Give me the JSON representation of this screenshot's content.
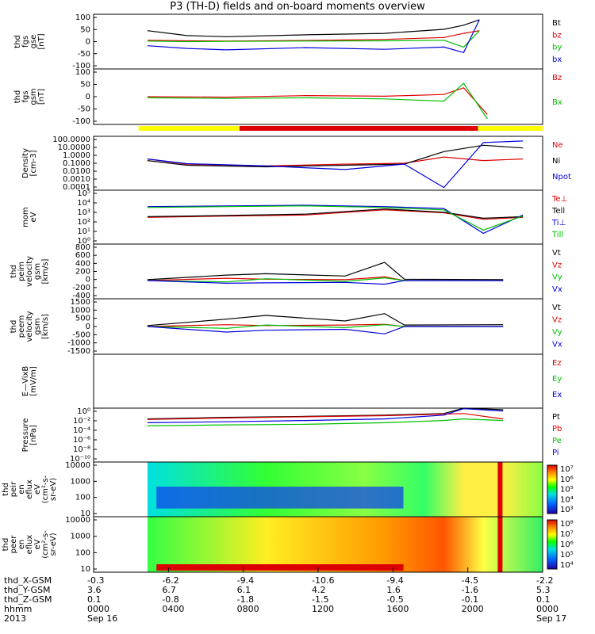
{
  "title": "P3 (TH-D) fields and on-board moments overview",
  "chart_data": [
    {
      "type": "line",
      "id": "fgs",
      "ylabel": [
        "thd",
        "fgs",
        "gse",
        "[nT]"
      ],
      "ylim": [
        -100,
        100
      ],
      "yticks": [
        100,
        50,
        0,
        -50,
        -100
      ],
      "series": [
        {
          "name": "Bt",
          "color": "#000000",
          "x": [
            0.0,
            0.1,
            0.2,
            0.4,
            0.6,
            0.75,
            0.8,
            0.84
          ],
          "y": [
            40,
            22,
            18,
            25,
            30,
            45,
            60,
            80
          ]
        },
        {
          "name": "bz",
          "color": "#e00000",
          "x": [
            0.0,
            0.1,
            0.2,
            0.4,
            0.6,
            0.75,
            0.8,
            0.84
          ],
          "y": [
            5,
            3,
            2,
            4,
            8,
            15,
            30,
            40
          ]
        },
        {
          "name": "by",
          "color": "#00c000",
          "x": [
            0.0,
            0.1,
            0.2,
            0.4,
            0.6,
            0.75,
            0.8,
            0.84
          ],
          "y": [
            2,
            0,
            1,
            2,
            3,
            5,
            -20,
            40
          ]
        },
        {
          "name": "bx",
          "color": "#0000e0",
          "x": [
            0.0,
            0.1,
            0.2,
            0.4,
            0.6,
            0.75,
            0.8,
            0.84
          ],
          "y": [
            -15,
            -25,
            -30,
            -22,
            -28,
            -20,
            -40,
            80
          ]
        }
      ]
    },
    {
      "type": "line",
      "id": "fgs-gsm",
      "ylabel": [
        "thd",
        "fgs",
        "gsm",
        "[nT]"
      ],
      "ylim": [
        -125,
        125
      ],
      "yticks": [
        100,
        50,
        0,
        -50,
        -100
      ],
      "series": [
        {
          "name": "Bz",
          "color": "#e00000",
          "x": [
            0.0,
            0.2,
            0.4,
            0.6,
            0.75,
            0.8,
            0.86
          ],
          "y": [
            0,
            -2,
            5,
            2,
            10,
            40,
            -80
          ]
        },
        {
          "name": "Bx",
          "color": "#00c000",
          "x": [
            0.0,
            0.2,
            0.4,
            0.6,
            0.75,
            0.8,
            0.86
          ],
          "y": [
            -5,
            -8,
            -5,
            -10,
            -20,
            60,
            -100
          ]
        }
      ]
    },
    {
      "type": "line",
      "id": "density",
      "ylabel": [
        "Density",
        "[cm-3]"
      ],
      "yscale": "log",
      "ylim": [
        0.0001,
        100
      ],
      "yticks": [
        "100.0000",
        "10.0000",
        "1.0000",
        "0.1000",
        "0.0100",
        "0.0010",
        "0.0001"
      ],
      "series": [
        {
          "name": "Ne",
          "color": "#e00000",
          "x": [
            0.0,
            0.1,
            0.3,
            0.5,
            0.65,
            0.75,
            0.85,
            0.95
          ],
          "y": [
            0.3,
            0.08,
            0.05,
            0.08,
            0.1,
            0.5,
            0.2,
            0.3
          ]
        },
        {
          "name": "Ni",
          "color": "#000000",
          "x": [
            0.0,
            0.1,
            0.3,
            0.5,
            0.65,
            0.75,
            0.85,
            0.95
          ],
          "y": [
            0.2,
            0.06,
            0.04,
            0.06,
            0.08,
            2,
            10,
            5
          ]
        },
        {
          "name": "Npot",
          "color": "#0000e0",
          "x": [
            0.0,
            0.1,
            0.3,
            0.5,
            0.65,
            0.75,
            0.85,
            0.95
          ],
          "y": [
            0.3,
            0.09,
            0.05,
            0.02,
            0.08,
            0.0002,
            20,
            30
          ]
        }
      ]
    },
    {
      "type": "line",
      "id": "temperature",
      "ylabel": [
        "mom",
        "eV"
      ],
      "yscale": "log",
      "ylim": [
        1,
        100000
      ],
      "yticks": [
        "10⁵",
        "10⁴",
        "10³",
        "10²",
        "10¹",
        "10⁰"
      ],
      "series": [
        {
          "name": "Te⊥",
          "color": "#e00000",
          "x": [
            0.0,
            0.2,
            0.4,
            0.6,
            0.75,
            0.85,
            0.95
          ],
          "y": [
            300,
            400,
            500,
            1500,
            800,
            200,
            300
          ]
        },
        {
          "name": "Tell",
          "color": "#000000",
          "x": [
            0.0,
            0.2,
            0.4,
            0.6,
            0.75,
            0.85,
            0.95
          ],
          "y": [
            350,
            450,
            600,
            1800,
            900,
            250,
            350
          ]
        },
        {
          "name": "Ti⊥",
          "color": "#0000e0",
          "x": [
            0.0,
            0.2,
            0.4,
            0.6,
            0.75,
            0.85,
            0.95
          ],
          "y": [
            3000,
            3500,
            4000,
            3000,
            2000,
            10,
            500
          ]
        },
        {
          "name": "Till",
          "color": "#00c000",
          "x": [
            0.0,
            0.2,
            0.4,
            0.6,
            0.75,
            0.85,
            0.95
          ],
          "y": [
            2500,
            3000,
            3500,
            2500,
            1500,
            20,
            400
          ]
        }
      ]
    },
    {
      "type": "line",
      "id": "peim-velocity",
      "ylabel": [
        "thd",
        "peim",
        "velocity",
        "gsm",
        "[km/s]"
      ],
      "ylim": [
        -400,
        800
      ],
      "yticks": [
        800,
        600,
        400,
        200,
        0,
        -200,
        -400
      ],
      "series": [
        {
          "name": "Vt",
          "color": "#000000",
          "x": [
            0.0,
            0.2,
            0.3,
            0.5,
            0.6,
            0.65,
            0.9
          ],
          "y": [
            20,
            120,
            150,
            100,
            400,
            30,
            20
          ]
        },
        {
          "name": "Vz",
          "color": "#e00000",
          "x": [
            0.0,
            0.2,
            0.3,
            0.5,
            0.6,
            0.65,
            0.9
          ],
          "y": [
            0,
            50,
            30,
            20,
            80,
            0,
            0
          ]
        },
        {
          "name": "Vy",
          "color": "#00c000",
          "x": [
            0.0,
            0.2,
            0.3,
            0.5,
            0.6,
            0.65,
            0.9
          ],
          "y": [
            0,
            -30,
            40,
            -20,
            60,
            0,
            0
          ]
        },
        {
          "name": "Vx",
          "color": "#0000e0",
          "x": [
            0.0,
            0.2,
            0.3,
            0.5,
            0.6,
            0.65,
            0.9
          ],
          "y": [
            0,
            -60,
            -50,
            -40,
            -80,
            0,
            0
          ]
        }
      ]
    },
    {
      "type": "line",
      "id": "peem-velocity",
      "ylabel": [
        "thd",
        "peem",
        "velocity",
        "gsm",
        "[km/s]"
      ],
      "ylim": [
        -1500,
        1500
      ],
      "yticks": [
        1500,
        1000,
        500,
        0,
        -500,
        -1000,
        -1500
      ],
      "series": [
        {
          "name": "Vt",
          "color": "#000000",
          "x": [
            0.0,
            0.2,
            0.3,
            0.5,
            0.6,
            0.65,
            0.9
          ],
          "y": [
            50,
            400,
            600,
            300,
            700,
            80,
            100
          ]
        },
        {
          "name": "Vz",
          "color": "#e00000",
          "x": [
            0.0,
            0.2,
            0.3,
            0.5,
            0.6,
            0.65,
            0.9
          ],
          "y": [
            0,
            100,
            50,
            80,
            120,
            0,
            0
          ]
        },
        {
          "name": "Vy",
          "color": "#00c000",
          "x": [
            0.0,
            0.2,
            0.3,
            0.5,
            0.6,
            0.65,
            0.9
          ],
          "y": [
            0,
            -100,
            80,
            -60,
            100,
            0,
            0
          ]
        },
        {
          "name": "Vx",
          "color": "#0000e0",
          "x": [
            0.0,
            0.2,
            0.3,
            0.5,
            0.6,
            0.65,
            0.9
          ],
          "y": [
            0,
            -300,
            -200,
            -150,
            -400,
            0,
            0
          ]
        }
      ]
    },
    {
      "type": "line",
      "id": "efield",
      "ylabel": [
        "E—VixB",
        "[mV/m]"
      ],
      "ylim": [
        0,
        1
      ],
      "yticks": [],
      "series": [
        {
          "name": "Ez",
          "color": "#e00000",
          "x": [],
          "y": []
        },
        {
          "name": "Ey",
          "color": "#00c000",
          "x": [],
          "y": []
        },
        {
          "name": "Ex",
          "color": "#0000e0",
          "x": [],
          "y": []
        }
      ]
    },
    {
      "type": "line",
      "id": "pressure",
      "ylabel": [
        "Pressure",
        "[nPa]"
      ],
      "yscale": "log",
      "ylim": [
        1e-10,
        1
      ],
      "yticks": [
        "10⁰",
        "10⁻²",
        "10⁻⁴",
        "10⁻⁶",
        "10⁻⁸",
        "10⁻¹⁰"
      ],
      "series": [
        {
          "name": "Pt",
          "color": "#000000",
          "x": [
            0.0,
            0.2,
            0.4,
            0.6,
            0.75,
            0.8,
            0.9
          ],
          "y": [
            0.01,
            0.02,
            0.03,
            0.05,
            0.1,
            1,
            0.5
          ]
        },
        {
          "name": "Pb",
          "color": "#e00000",
          "x": [
            0.0,
            0.2,
            0.4,
            0.6,
            0.75,
            0.8,
            0.9
          ],
          "y": [
            0.008,
            0.015,
            0.025,
            0.04,
            0.08,
            0.1,
            0.01
          ]
        },
        {
          "name": "Pe",
          "color": "#00c000",
          "x": [
            0.0,
            0.2,
            0.4,
            0.6,
            0.75,
            0.8,
            0.9
          ],
          "y": [
            0.0005,
            0.0008,
            0.001,
            0.002,
            0.005,
            0.01,
            0.005
          ]
        },
        {
          "name": "Pi",
          "color": "#0000e0",
          "x": [
            0.0,
            0.2,
            0.4,
            0.6,
            0.75,
            0.8,
            0.9
          ],
          "y": [
            0.002,
            0.003,
            0.005,
            0.01,
            0.05,
            0.8,
            0.3
          ]
        }
      ]
    },
    {
      "type": "heatmap",
      "id": "peir-spectrogram",
      "ylabel": [
        "thd",
        "peir",
        "en",
        "eflux",
        "eV",
        "(cm²-s-",
        "sr-eV)"
      ],
      "yticks": [
        "10000",
        "1000",
        "100",
        "10"
      ],
      "colorbar_ticks": [
        "10⁷",
        "10⁶",
        "10⁵",
        "10⁴",
        "10³"
      ]
    },
    {
      "type": "heatmap",
      "id": "peer-spectrogram",
      "ylabel": [
        "thd",
        "peer",
        "en",
        "eflux",
        "eV",
        "(cm²-s-",
        "sr-eV)"
      ],
      "yticks": [
        "10000",
        "1000",
        "100",
        "10"
      ],
      "colorbar_ticks": [
        "10⁸",
        "10⁷",
        "10⁶",
        "10⁵",
        "10⁴"
      ]
    }
  ],
  "mode_bar": {
    "segments": [
      {
        "start": 0,
        "end": 0.25,
        "color": "#ffff00"
      },
      {
        "start": 0.25,
        "end": 0.84,
        "color": "#e00000"
      },
      {
        "start": 0.84,
        "end": 1.0,
        "color": "#ffff00"
      }
    ]
  },
  "ephemeris": {
    "labels": [
      "thd_X-GSM",
      "thd_Y-GSM",
      "thd_Z-GSM",
      "hhmm",
      "2013"
    ],
    "columns": [
      {
        "values": [
          "-0.3",
          "3.6",
          "0.1",
          "0000",
          "Sep 16"
        ]
      },
      {
        "values": [
          "-6.2",
          "6.7",
          "-0.8",
          "0400",
          ""
        ]
      },
      {
        "values": [
          "-9.4",
          "6.1",
          "-1.8",
          "0800",
          ""
        ]
      },
      {
        "values": [
          "-10.6",
          "4.2",
          "-1.5",
          "1200",
          ""
        ]
      },
      {
        "values": [
          "-9.4",
          "1.6",
          "-0.5",
          "1600",
          ""
        ]
      },
      {
        "values": [
          "-4.5",
          "-1.6",
          "-0.1",
          "2000",
          ""
        ]
      },
      {
        "values": [
          "-2.2",
          "5.3",
          "0.1",
          "0000",
          "Sep 17"
        ]
      }
    ]
  }
}
